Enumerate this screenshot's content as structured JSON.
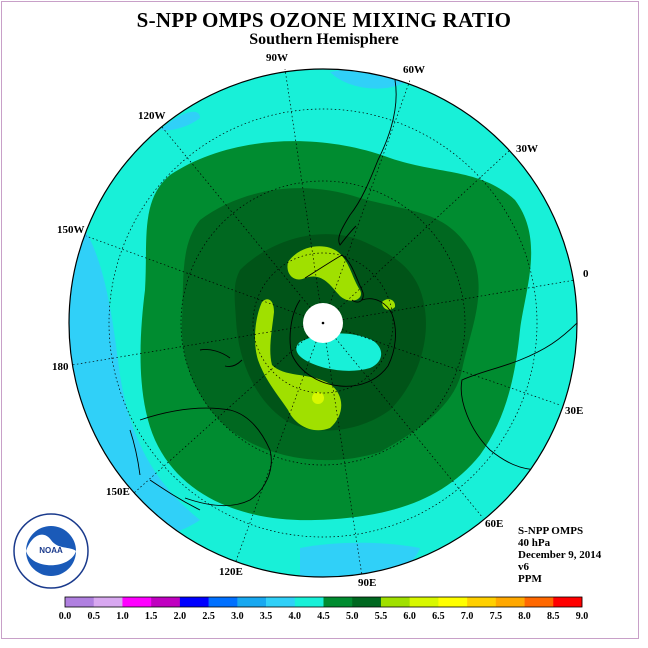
{
  "title": "S-NPP OMPS OZONE MIXING RATIO",
  "subtitle": "Southern Hemisphere",
  "longitude_labels": {
    "w90": "90W",
    "w60": "60W",
    "w30": "30W",
    "e0": "0",
    "e30": "30E",
    "e60": "60E",
    "e90": "90E",
    "e120": "120E",
    "e150": "150E",
    "e180": "180",
    "w150": "150W",
    "w120": "120W"
  },
  "info": {
    "instrument": "S-NPP OMPS",
    "level": "40 hPa",
    "date": "December 9, 2014",
    "version": "v6",
    "units": "PPM"
  },
  "logo": {
    "text": "NOAA",
    "ring_text": "NATIONAL OCEANIC AND ATMOSPHERIC ADMINISTRATION · U.S. DEPARTMENT OF COMMERCE"
  },
  "colorbar": {
    "ticks": [
      "0.0",
      "0.5",
      "1.0",
      "1.5",
      "2.0",
      "2.5",
      "3.0",
      "3.5",
      "4.0",
      "4.5",
      "5.0",
      "5.5",
      "6.0",
      "6.5",
      "7.0",
      "7.5",
      "8.0",
      "8.5",
      "9.0"
    ],
    "colors": [
      "#b080e0",
      "#d8a8f0",
      "#ff00ff",
      "#c000c0",
      "#0000ff",
      "#0070ff",
      "#18a8f0",
      "#30d0f8",
      "#18f0d8",
      "#008c30",
      "#006820",
      "#a0e000",
      "#d8f800",
      "#ffff00",
      "#ffd000",
      "#ffa800",
      "#ff6800",
      "#ff0000",
      "#804020"
    ]
  },
  "map_colors": {
    "c30": "#30d0f8",
    "c35": "#18f0d8",
    "c40": "#008c30",
    "c45": "#006820",
    "c50": "#005418",
    "c55": "#a0e000",
    "c60": "#d8f800"
  }
}
